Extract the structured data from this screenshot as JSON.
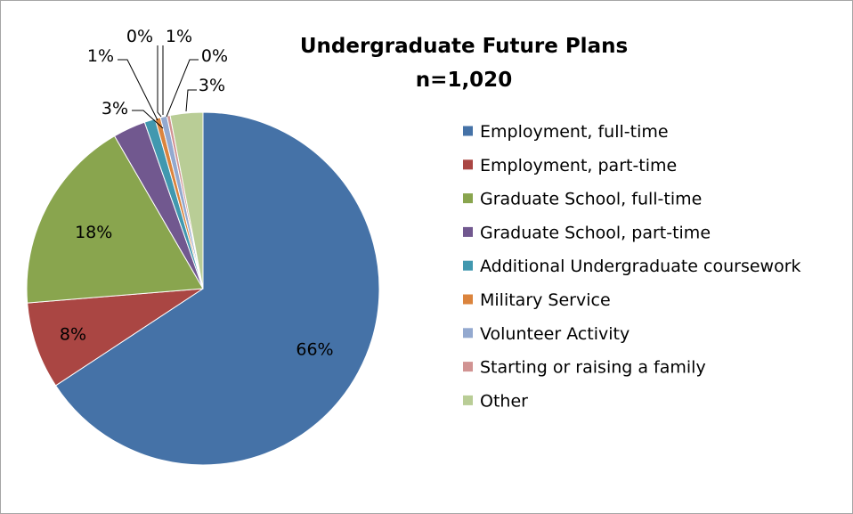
{
  "chart_data": {
    "type": "pie",
    "title": "Undergraduate Future Plans",
    "subtitle": "n=1,020",
    "legend_position": "right",
    "series": [
      {
        "label": "Employment, full-time",
        "value": 66,
        "value_label": "66%",
        "color": "#4572A7"
      },
      {
        "label": "Employment, part-time",
        "value": 8,
        "value_label": "8%",
        "color": "#AA4643"
      },
      {
        "label": "Graduate School, full-time",
        "value": 18,
        "value_label": "18%",
        "color": "#89A54E"
      },
      {
        "label": "Graduate School, part-time",
        "value": 3,
        "value_label": "3%",
        "color": "#71588F"
      },
      {
        "label": "Additional Undergraduate coursework",
        "value": 1,
        "value_label": "1%",
        "color": "#4198AF"
      },
      {
        "label": "Military Service",
        "value": 0.5,
        "value_label": "0%",
        "color": "#DB843D"
      },
      {
        "label": "Volunteer Activity",
        "value": 0.6,
        "value_label": "1%",
        "color": "#93A9CF"
      },
      {
        "label": "Starting or raising a family",
        "value": 0.3,
        "value_label": "0%",
        "color": "#D19392"
      },
      {
        "label": "Other",
        "value": 3,
        "value_label": "3%",
        "color": "#B9CD96"
      }
    ]
  }
}
